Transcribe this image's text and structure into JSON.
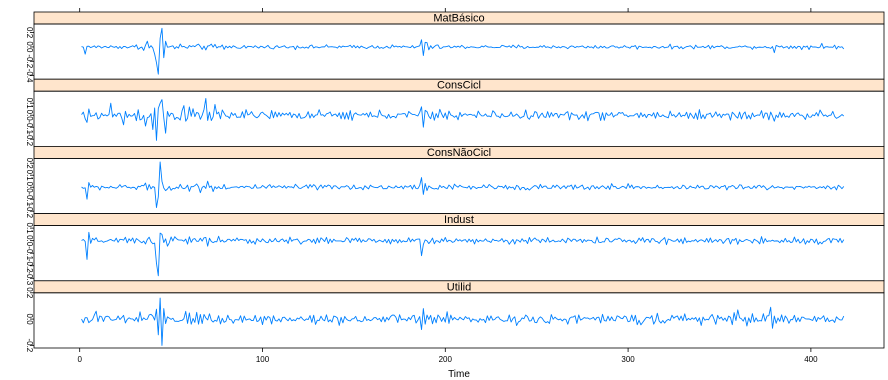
{
  "chart_data": {
    "type": "line",
    "title": "",
    "xlabel": "Time",
    "ylabel": "",
    "xlim": [
      -25,
      440
    ],
    "x_ticks": [
      0,
      100,
      200,
      300,
      400
    ],
    "x_tick_labels": [
      "0",
      "100",
      "200",
      "300",
      "400"
    ],
    "series_color": "#0080ff",
    "strip_color": "#ffe5cc",
    "grid": false,
    "legend": "none",
    "n_points": 418,
    "panels": [
      {
        "name": "MatBásico",
        "ylim": [
          -0.45,
          0.32
        ],
        "y_ticks": [
          0.2,
          0.0,
          -0.2,
          -0.4
        ],
        "y_tick_labels": [
          "0.2",
          "0.0",
          "-0.2",
          "-0.4"
        ],
        "noise": 0.022,
        "events": [
          {
            "x": 41,
            "value": -0.1
          },
          {
            "x": 42,
            "value": -0.22
          },
          {
            "x": 43,
            "value": -0.38
          },
          {
            "x": 44,
            "value": 0.12
          },
          {
            "x": 45,
            "value": 0.26
          },
          {
            "x": 46,
            "value": -0.15
          },
          {
            "x": 47,
            "value": 0.08
          },
          {
            "x": 37,
            "value": 0.08
          },
          {
            "x": 3,
            "value": -0.1
          },
          {
            "x": 187,
            "value": 0.1
          },
          {
            "x": 188,
            "value": -0.12
          },
          {
            "x": 190,
            "value": 0.06
          },
          {
            "x": 380,
            "value": -0.08
          },
          {
            "x": 406,
            "value": 0.05
          }
        ]
      },
      {
        "name": "ConsCicl",
        "ylim": [
          -0.26,
          0.2
        ],
        "y_ticks": [
          0.1,
          0.0,
          -0.1,
          -0.2
        ],
        "y_tick_labels": [
          "0.1",
          "0.0",
          "-0.1",
          "-0.2"
        ],
        "noise": 0.03,
        "events": [
          {
            "x": 4,
            "value": -0.06
          },
          {
            "x": 17,
            "value": 0.1
          },
          {
            "x": 24,
            "value": -0.08
          },
          {
            "x": 36,
            "value": -0.09
          },
          {
            "x": 40,
            "value": -0.12
          },
          {
            "x": 42,
            "value": -0.21
          },
          {
            "x": 44,
            "value": 0.1
          },
          {
            "x": 45,
            "value": 0.13
          },
          {
            "x": 47,
            "value": -0.15
          },
          {
            "x": 57,
            "value": 0.08
          },
          {
            "x": 69,
            "value": 0.14
          },
          {
            "x": 74,
            "value": 0.09
          },
          {
            "x": 187,
            "value": 0.07
          },
          {
            "x": 188,
            "value": -0.1
          },
          {
            "x": 380,
            "value": -0.05
          }
        ]
      },
      {
        "name": "ConsNãoCicl",
        "ylim": [
          -0.22,
          0.24
        ],
        "y_ticks": [
          0.2,
          0.1,
          0.0,
          -0.1,
          -0.2
        ],
        "y_tick_labels": [
          "0.2",
          "0.1",
          "0.0",
          "-0.1",
          "-0.2"
        ],
        "noise": 0.018,
        "events": [
          {
            "x": 4,
            "value": -0.1
          },
          {
            "x": 42,
            "value": -0.17
          },
          {
            "x": 43,
            "value": -0.08
          },
          {
            "x": 44,
            "value": 0.21
          },
          {
            "x": 45,
            "value": 0.05
          },
          {
            "x": 70,
            "value": 0.05
          },
          {
            "x": 187,
            "value": 0.08
          },
          {
            "x": 188,
            "value": -0.06
          },
          {
            "x": 300,
            "value": 0.03
          }
        ]
      },
      {
        "name": "Indust",
        "ylim": [
          -0.32,
          0.12
        ],
        "y_ticks": [
          0.1,
          0.0,
          -0.1,
          -0.2,
          -0.3
        ],
        "y_tick_labels": [
          "0.1",
          "0.0",
          "-0.1",
          "-0.2",
          "-0.3"
        ],
        "noise": 0.02,
        "events": [
          {
            "x": 4,
            "value": -0.15
          },
          {
            "x": 17,
            "value": 0.01
          },
          {
            "x": 42,
            "value": -0.18
          },
          {
            "x": 43,
            "value": -0.28
          },
          {
            "x": 44,
            "value": 0.06
          },
          {
            "x": 45,
            "value": 0.05
          },
          {
            "x": 187,
            "value": -0.12
          },
          {
            "x": 188,
            "value": -0.03
          },
          {
            "x": 404,
            "value": -0.03
          }
        ]
      },
      {
        "name": "Utilid",
        "ylim": [
          -0.22,
          0.2
        ],
        "y_ticks": [
          0.2,
          0.0,
          -0.2
        ],
        "y_tick_labels": [
          "0.2",
          "0.0",
          "-0.2"
        ],
        "noise": 0.03,
        "events": [
          {
            "x": 9,
            "value": 0.06
          },
          {
            "x": 43,
            "value": -0.12
          },
          {
            "x": 44,
            "value": 0.16
          },
          {
            "x": 45,
            "value": -0.2
          },
          {
            "x": 46,
            "value": 0.08
          },
          {
            "x": 187,
            "value": -0.08
          },
          {
            "x": 188,
            "value": 0.08
          },
          {
            "x": 360,
            "value": 0.07
          },
          {
            "x": 378,
            "value": 0.09
          },
          {
            "x": 379,
            "value": -0.07
          }
        ]
      }
    ]
  }
}
